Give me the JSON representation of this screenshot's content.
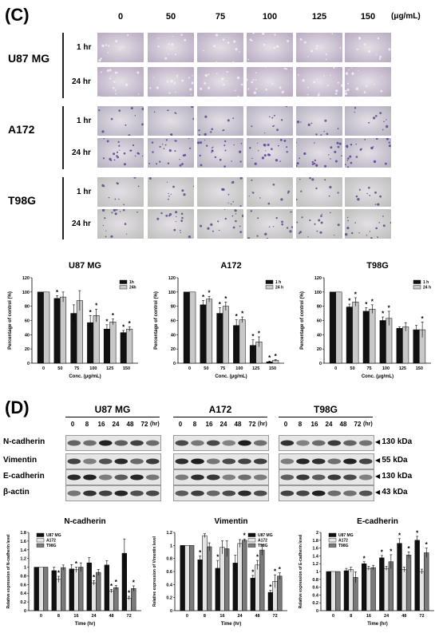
{
  "panel_c": {
    "label": "(C)",
    "concentrations": [
      "0",
      "50",
      "75",
      "100",
      "125",
      "150"
    ],
    "unit": "(μg/mL)",
    "cells": [
      {
        "name": "U87 MG",
        "times": [
          "1 hr",
          "24 hr"
        ],
        "tint": "#b7a9c1"
      },
      {
        "name": "A172",
        "times": [
          "1 hr",
          "24 hr"
        ],
        "tint": "#b4b0bf"
      },
      {
        "name": "T98G",
        "times": [
          "1 hr",
          "24 hr"
        ],
        "tint": "#bdbfbb"
      }
    ]
  },
  "panel_d": {
    "label": "(D)",
    "blot_groups": [
      {
        "name": "U87 MG",
        "times": [
          "0",
          "8",
          "16",
          "24",
          "48",
          "72"
        ],
        "hr": "(hr)"
      },
      {
        "name": "A172",
        "times": [
          "0",
          "8",
          "16",
          "24",
          "48",
          "72"
        ],
        "hr": "(hr)"
      },
      {
        "name": "T98G",
        "times": [
          "0",
          "8",
          "16",
          "24",
          "48",
          "72"
        ],
        "hr": "(hr)"
      }
    ],
    "proteins": [
      "N-cadherin",
      "Vimentin",
      "E-cadherin",
      "β-actin"
    ],
    "kda": [
      "130 kDa",
      "55 kDa",
      "130 kDa",
      "43 kDa"
    ]
  },
  "chart_data": [
    {
      "type": "bar",
      "title": "U87 MG",
      "xlabel": "Conc. (μg/mL)",
      "ylabel": "Percentage of control (%)",
      "categories": [
        "0",
        "50",
        "75",
        "100",
        "125",
        "150"
      ],
      "ylim": [
        0,
        120
      ],
      "yticks": [
        "0",
        "20",
        "40",
        "60",
        "80",
        "100",
        "120"
      ],
      "series": [
        {
          "name": "1h",
          "color": "#111111",
          "values": [
            100,
            91,
            70,
            57,
            48,
            43
          ],
          "err": [
            0,
            4,
            12,
            10,
            6,
            3
          ],
          "star": [
            false,
            true,
            false,
            true,
            true,
            true
          ]
        },
        {
          "name": "24h",
          "color": "#c8c8c8",
          "values": [
            100,
            93,
            88,
            67,
            58,
            48
          ],
          "err": [
            0,
            7,
            14,
            9,
            4,
            3
          ],
          "star": [
            false,
            false,
            false,
            true,
            true,
            true
          ]
        }
      ]
    },
    {
      "type": "bar",
      "title": "A172",
      "xlabel": "Conc. (μg/mL)",
      "ylabel": "Percentage of control (%)",
      "categories": [
        "0",
        "50",
        "75",
        "100",
        "125",
        "150"
      ],
      "ylim": [
        0,
        120
      ],
      "yticks": [
        "0",
        "20",
        "40",
        "60",
        "80",
        "100",
        "120"
      ],
      "series": [
        {
          "name": "1 h",
          "color": "#111111",
          "values": [
            100,
            82,
            70,
            53,
            25,
            2
          ],
          "err": [
            0,
            6,
            8,
            8,
            8,
            1
          ],
          "star": [
            false,
            true,
            true,
            true,
            true,
            true
          ]
        },
        {
          "name": "24 h",
          "color": "#c8c8c8",
          "values": [
            100,
            90,
            80,
            61,
            30,
            4
          ],
          "err": [
            0,
            4,
            6,
            4,
            7,
            1
          ],
          "star": [
            false,
            true,
            true,
            true,
            true,
            true
          ]
        }
      ]
    },
    {
      "type": "bar",
      "title": "T98G",
      "xlabel": "Conc. (μg/mL)",
      "ylabel": "Percentage of control (%)",
      "categories": [
        "0",
        "50",
        "75",
        "100",
        "125",
        "150"
      ],
      "ylim": [
        0,
        120
      ],
      "yticks": [
        "0",
        "20",
        "40",
        "60",
        "80",
        "100",
        "120"
      ],
      "series": [
        {
          "name": "1 h",
          "color": "#111111",
          "values": [
            100,
            79,
            73,
            60,
            49,
            47
          ],
          "err": [
            0,
            4,
            5,
            5,
            2,
            6
          ],
          "star": [
            false,
            true,
            true,
            true,
            false,
            false
          ]
        },
        {
          "name": "24 h",
          "color": "#c8c8c8",
          "values": [
            100,
            86,
            76,
            63,
            51,
            47
          ],
          "err": [
            0,
            6,
            6,
            10,
            6,
            11
          ],
          "star": [
            false,
            true,
            true,
            true,
            false,
            true
          ]
        }
      ]
    },
    {
      "type": "bar",
      "title": "N-cadherin",
      "xlabel": "Time (hr)",
      "ylabel": "Relative expression of N-cadherin level",
      "categories": [
        "0",
        "8",
        "16",
        "24",
        "48",
        "72"
      ],
      "ylim": [
        0,
        1.8
      ],
      "yticks": [
        "0",
        "0.2",
        "0.4",
        "0.6",
        "0.8",
        "1",
        "1.2",
        "1.4",
        "1.6",
        "1.8"
      ],
      "series": [
        {
          "name": "U87 MG",
          "color": "#111111",
          "values": [
            1.0,
            0.92,
            0.96,
            1.1,
            1.05,
            1.32
          ],
          "err": [
            0,
            0.08,
            0.1,
            0.12,
            0.1,
            0.33
          ],
          "star": [
            false,
            false,
            false,
            false,
            false,
            false
          ]
        },
        {
          "name": "A172",
          "color": "#e4e4e4",
          "values": [
            1.0,
            0.72,
            0.94,
            0.64,
            0.45,
            0.29
          ],
          "err": [
            0,
            0.07,
            0.06,
            0.05,
            0.04,
            0.04
          ],
          "star": [
            false,
            true,
            true,
            true,
            true,
            true
          ]
        },
        {
          "name": "T98G",
          "color": "#7a7a7a",
          "values": [
            1.0,
            0.99,
            1.0,
            0.88,
            0.53,
            0.51
          ],
          "err": [
            0,
            0.06,
            0.1,
            0.07,
            0.05,
            0.06
          ],
          "star": [
            false,
            false,
            false,
            false,
            true,
            true
          ]
        }
      ]
    },
    {
      "type": "bar",
      "title": "Vimentin",
      "xlabel": "Time (hr)",
      "ylabel": "Relative expression of Vimentin level",
      "categories": [
        "0",
        "8",
        "16",
        "24",
        "48",
        "72"
      ],
      "ylim": [
        0,
        1.2
      ],
      "yticks": [
        "0",
        "0.2",
        "0.4",
        "0.6",
        "0.8",
        "1",
        "1.2"
      ],
      "series": [
        {
          "name": "U87 MG",
          "color": "#111111",
          "values": [
            1.0,
            0.78,
            0.65,
            0.73,
            0.5,
            0.28
          ],
          "err": [
            0,
            0.06,
            0.12,
            0.12,
            0.04,
            0.03
          ],
          "star": [
            false,
            true,
            true,
            false,
            true,
            true
          ]
        },
        {
          "name": "A172",
          "color": "#e4e4e4",
          "values": [
            1.0,
            1.15,
            0.97,
            1.03,
            0.7,
            0.45
          ],
          "err": [
            0,
            0.03,
            0.1,
            0.06,
            0.07,
            0.1
          ],
          "star": [
            false,
            false,
            false,
            false,
            true,
            true
          ]
        },
        {
          "name": "T98G",
          "color": "#7a7a7a",
          "values": [
            1.0,
            0.98,
            0.95,
            1.08,
            0.93,
            0.53
          ],
          "err": [
            0,
            0.06,
            0.12,
            0.02,
            0.08,
            0.05
          ],
          "star": [
            false,
            false,
            false,
            true,
            false,
            true
          ]
        }
      ]
    },
    {
      "type": "bar",
      "title": "E-cadherin",
      "xlabel": "Time (hr)",
      "ylabel": "Relative expression of E-cadherin level",
      "categories": [
        "0",
        "8",
        "16",
        "24",
        "48",
        "72"
      ],
      "ylim": [
        0,
        2
      ],
      "yticks": [
        "0",
        "0.2",
        "0.4",
        "0.6",
        "0.8",
        "1",
        "1.2",
        "1.4",
        "1.6",
        "1.8",
        "2"
      ],
      "series": [
        {
          "name": "U87 MG",
          "color": "#111111",
          "values": [
            1.0,
            1.02,
            1.2,
            1.35,
            1.72,
            1.8
          ],
          "err": [
            0,
            0.06,
            0.05,
            0.06,
            0.12,
            0.1
          ],
          "star": [
            false,
            false,
            true,
            true,
            true,
            true
          ]
        },
        {
          "name": "A172",
          "color": "#e4e4e4",
          "values": [
            1.0,
            1.05,
            1.08,
            1.08,
            1.05,
            1.0
          ],
          "err": [
            0,
            0.06,
            0.05,
            0.05,
            0.06,
            0.06
          ],
          "star": [
            false,
            false,
            false,
            false,
            false,
            false
          ]
        },
        {
          "name": "T98G",
          "color": "#7a7a7a",
          "values": [
            1.0,
            0.85,
            1.1,
            1.25,
            1.42,
            1.48
          ],
          "err": [
            0,
            0.14,
            0.06,
            0.18,
            0.08,
            0.12
          ],
          "star": [
            false,
            false,
            false,
            true,
            true,
            true
          ]
        }
      ]
    }
  ]
}
